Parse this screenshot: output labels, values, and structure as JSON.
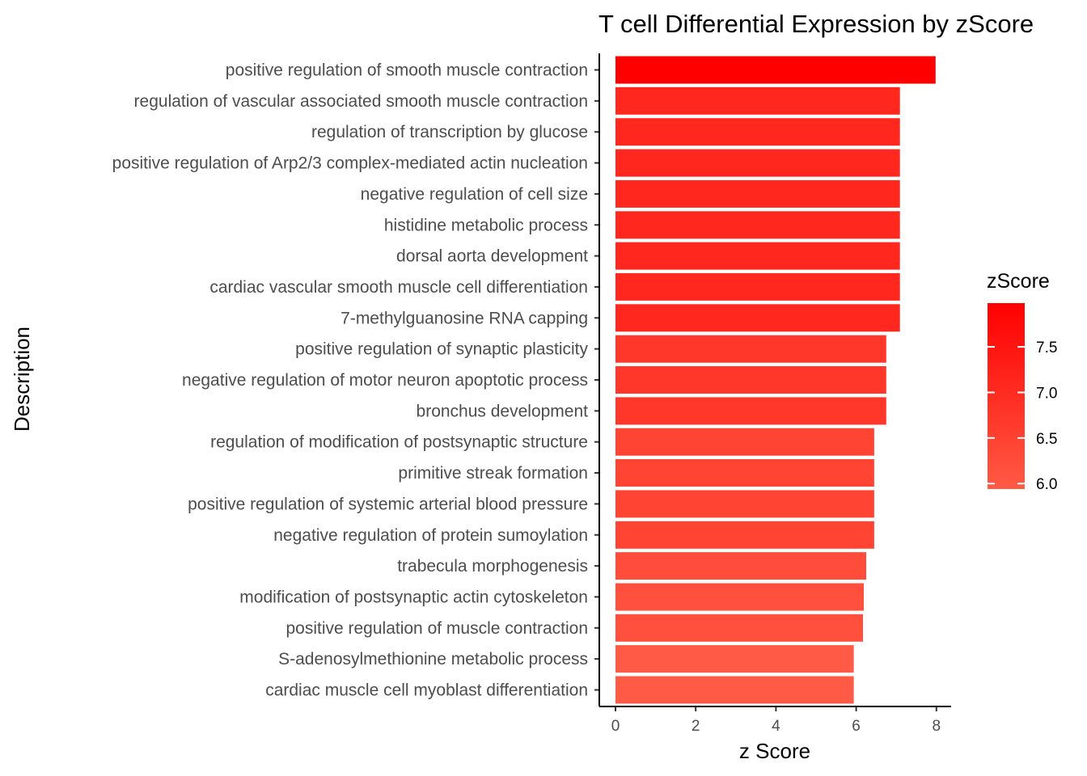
{
  "chart_data": {
    "type": "bar",
    "orientation": "horizontal",
    "title": "T cell Differential Expression by zScore",
    "xlabel": "z Score",
    "ylabel": "Description",
    "xlim": [
      0,
      8.3
    ],
    "xticks": [
      0,
      2,
      4,
      6,
      8
    ],
    "grid": false,
    "categories": [
      "positive regulation of smooth muscle contraction",
      "regulation of vascular associated smooth muscle contraction",
      "regulation of transcription by glucose",
      "positive regulation of Arp2/3 complex-mediated actin nucleation",
      "negative regulation of cell size",
      "histidine metabolic process",
      "dorsal aorta development",
      "cardiac vascular smooth muscle cell differentiation",
      "7-methylguanosine RNA capping",
      "positive regulation of synaptic plasticity",
      "negative regulation of motor neuron apoptotic process",
      "bronchus development",
      "regulation of modification of postsynaptic structure",
      "primitive streak formation",
      "positive regulation of systemic arterial blood pressure",
      "negative regulation of protein sumoylation",
      "trabecula morphogenesis",
      "modification of postsynaptic actin cytoskeleton",
      "positive regulation of muscle contraction",
      "S-adenosylmethionine metabolic process",
      "cardiac muscle cell myoblast differentiation"
    ],
    "values": [
      7.98,
      7.09,
      7.09,
      7.09,
      7.09,
      7.09,
      7.09,
      7.09,
      7.09,
      6.75,
      6.75,
      6.75,
      6.45,
      6.45,
      6.45,
      6.45,
      6.25,
      6.19,
      6.17,
      5.94,
      5.94
    ],
    "legend": {
      "title": "zScore",
      "position": "right",
      "min": 5.94,
      "max": 7.98,
      "ticks": [
        6.0,
        6.5,
        7.0,
        7.5
      ],
      "color_low": "#ff5a45",
      "color_high": "#ff0000"
    }
  }
}
